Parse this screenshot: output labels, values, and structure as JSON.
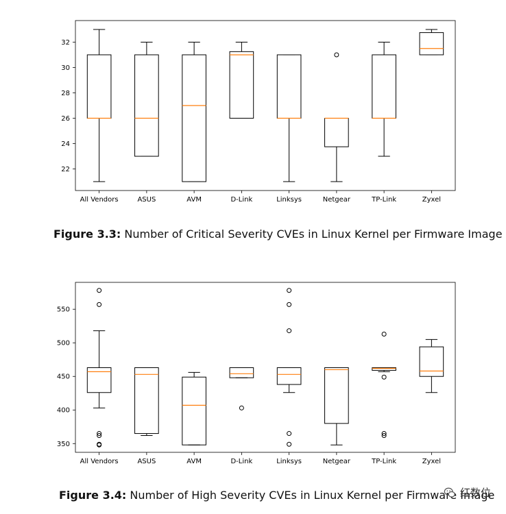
{
  "chart_data": [
    {
      "type": "box",
      "categories": [
        "All Vendors",
        "ASUS",
        "AVM",
        "D-Link",
        "Linksys",
        "Netgear",
        "TP-Link",
        "Zyxel"
      ],
      "yticks": [
        22,
        24,
        26,
        28,
        30,
        32
      ],
      "ylim": [
        20.3,
        33.7
      ],
      "boxes": [
        {
          "whisker_low": 21,
          "q1": 26,
          "median": 26,
          "q3": 31,
          "whisker_high": 33,
          "outliers": []
        },
        {
          "whisker_low": 23,
          "q1": 23,
          "median": 26,
          "q3": 31,
          "whisker_high": 32,
          "outliers": []
        },
        {
          "whisker_low": 21,
          "q1": 21,
          "median": 27,
          "q3": 31,
          "whisker_high": 32,
          "outliers": []
        },
        {
          "whisker_low": 26,
          "q1": 26,
          "median": 31,
          "q3": 31.25,
          "whisker_high": 32,
          "outliers": []
        },
        {
          "whisker_low": 21,
          "q1": 26,
          "median": 26,
          "q3": 31,
          "whisker_high": 31,
          "outliers": []
        },
        {
          "whisker_low": 21,
          "q1": 23.75,
          "median": 26,
          "q3": 26,
          "whisker_high": 26,
          "outliers": [
            31
          ]
        },
        {
          "whisker_low": 23,
          "q1": 26,
          "median": 26,
          "q3": 31,
          "whisker_high": 32,
          "outliers": []
        },
        {
          "whisker_low": 31,
          "q1": 31,
          "median": 31.5,
          "q3": 32.75,
          "whisker_high": 33,
          "outliers": []
        }
      ],
      "caption_label": "Figure 3.3:",
      "caption_text": " Number of Critical Severity CVEs in Linux Kernel per Firmware Image"
    },
    {
      "type": "box",
      "categories": [
        "All Vendors",
        "ASUS",
        "AVM",
        "D-Link",
        "Linksys",
        "Netgear",
        "TP-Link",
        "Zyxel"
      ],
      "yticks": [
        350,
        400,
        450,
        500,
        550
      ],
      "ylim": [
        337,
        590
      ],
      "boxes": [
        {
          "whisker_low": 403,
          "q1": 426,
          "median": 457,
          "q3": 463,
          "whisker_high": 518,
          "outliers": [
            578,
            557,
            365,
            362,
            349,
            348
          ]
        },
        {
          "whisker_low": 362,
          "q1": 365,
          "median": 453,
          "q3": 463,
          "whisker_high": 463,
          "outliers": []
        },
        {
          "whisker_low": 348,
          "q1": 348,
          "median": 407,
          "q3": 449,
          "whisker_high": 456,
          "outliers": []
        },
        {
          "whisker_low": 448,
          "q1": 448,
          "median": 454,
          "q3": 463,
          "whisker_high": 463,
          "outliers": [
            403
          ]
        },
        {
          "whisker_low": 426,
          "q1": 438,
          "median": 453,
          "q3": 463,
          "whisker_high": 463,
          "outliers": [
            578,
            557,
            518,
            365,
            349
          ]
        },
        {
          "whisker_low": 348,
          "q1": 380,
          "median": 460,
          "q3": 463,
          "whisker_high": 463,
          "outliers": []
        },
        {
          "whisker_low": 457,
          "q1": 459,
          "median": 462,
          "q3": 463,
          "whisker_high": 463,
          "outliers": [
            513,
            449,
            365,
            362
          ]
        },
        {
          "whisker_low": 426,
          "q1": 450,
          "median": 458,
          "q3": 494,
          "whisker_high": 505,
          "outliers": []
        }
      ],
      "caption_label": "Figure 3.4:",
      "caption_text": " Number of High Severity CVEs in Linux Kernel per Firmware Image"
    }
  ],
  "colors": {
    "box": "#000000",
    "median": "#ff7f0e"
  },
  "watermark": {
    "text": "红数位",
    "icon": "wechat-logo-icon"
  }
}
